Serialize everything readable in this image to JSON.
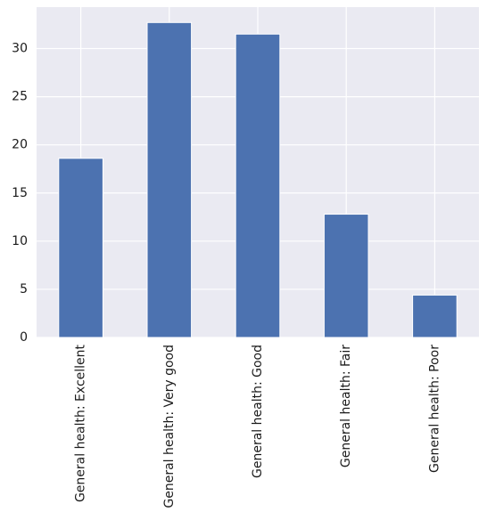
{
  "chart_data": {
    "type": "bar",
    "categories": [
      "General health: Excellent",
      "General health: Very good",
      "General health: Good",
      "General health: Fair",
      "General health: Poor"
    ],
    "values": [
      18.6,
      32.7,
      31.5,
      12.8,
      4.4
    ],
    "ylim": [
      0,
      34.3
    ],
    "yticks": [
      "0",
      "5",
      "10",
      "15",
      "20",
      "25",
      "30"
    ],
    "grid": true,
    "colors": {
      "bar": "#4c72b0",
      "plot_background": "#eaeaf2",
      "grid": "#ffffff"
    }
  }
}
